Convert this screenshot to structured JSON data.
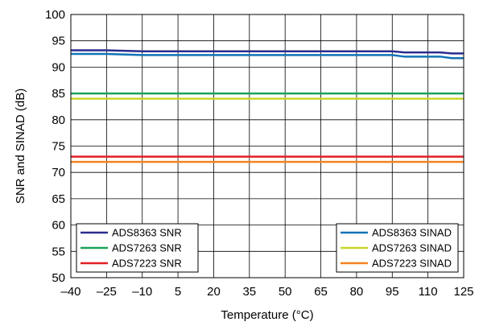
{
  "chart_data": {
    "type": "line",
    "xlabel": "Temperature (°C)",
    "ylabel": "SNR and SINAD (dB)",
    "xlim": [
      -40,
      125
    ],
    "ylim": [
      50,
      100
    ],
    "x_ticks": [
      "–40",
      "–25",
      "–10",
      "5",
      "20",
      "35",
      "50",
      "65",
      "80",
      "95",
      "110",
      "125"
    ],
    "y_ticks": [
      "50",
      "55",
      "60",
      "65",
      "70",
      "75",
      "80",
      "85",
      "90",
      "95",
      "100"
    ],
    "grid": true,
    "x": [
      -40,
      -25,
      -10,
      5,
      20,
      35,
      50,
      65,
      80,
      95,
      100,
      110,
      115,
      120,
      125
    ],
    "series": [
      {
        "name": "ADS8363 SNR",
        "color": "#2b2c8e",
        "values": [
          93.2,
          93.2,
          93.0,
          93.0,
          93.0,
          93.0,
          93.0,
          93.0,
          93.0,
          93.0,
          92.8,
          92.8,
          92.8,
          92.6,
          92.6
        ]
      },
      {
        "name": "ADS8363 SINAD",
        "color": "#1273b6",
        "values": [
          92.5,
          92.5,
          92.3,
          92.3,
          92.3,
          92.3,
          92.3,
          92.3,
          92.3,
          92.3,
          92.0,
          92.0,
          92.0,
          91.7,
          91.7
        ]
      },
      {
        "name": "ADS7263 SNR",
        "color": "#1aa35b",
        "values": [
          85.0,
          85.0,
          85.0,
          85.0,
          85.0,
          85.0,
          85.0,
          85.0,
          85.0,
          85.0,
          85.0,
          85.0,
          85.0,
          85.0,
          85.0
        ]
      },
      {
        "name": "ADS7263 SINAD",
        "color": "#c8d62a",
        "values": [
          84.0,
          84.0,
          84.0,
          84.0,
          84.0,
          84.0,
          84.0,
          84.0,
          84.0,
          84.0,
          84.0,
          84.0,
          84.0,
          84.0,
          84.0
        ]
      },
      {
        "name": "ADS7223 SNR",
        "color": "#e21f26",
        "values": [
          73.0,
          73.0,
          73.0,
          73.0,
          73.0,
          73.0,
          73.0,
          73.0,
          73.0,
          73.0,
          73.0,
          73.0,
          73.0,
          73.0,
          73.0
        ]
      },
      {
        "name": "ADS7223 SINAD",
        "color": "#f58220",
        "values": [
          72.0,
          72.0,
          72.0,
          72.0,
          72.0,
          72.0,
          72.0,
          72.0,
          72.0,
          72.0,
          72.0,
          72.0,
          72.0,
          72.0,
          72.0
        ]
      }
    ],
    "legends": [
      {
        "placement": "bottom-left",
        "entries": [
          "ADS8363 SNR",
          "ADS7263 SNR",
          "ADS7223 SNR"
        ]
      },
      {
        "placement": "bottom-right",
        "entries": [
          "ADS8363 SINAD",
          "ADS7263 SINAD",
          "ADS7223 SINAD"
        ]
      }
    ]
  }
}
